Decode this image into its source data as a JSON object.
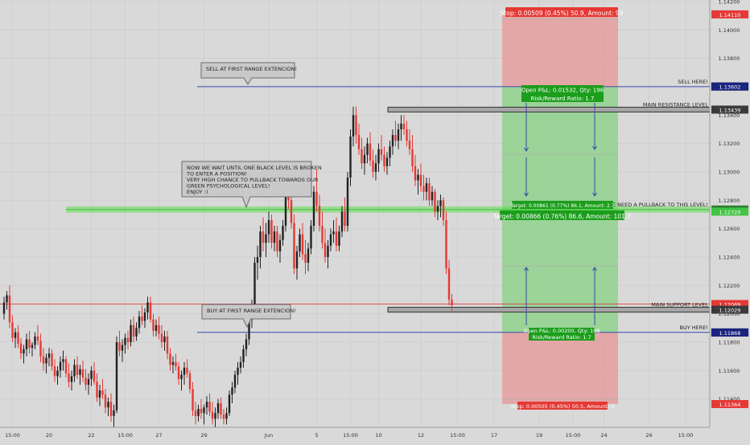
{
  "chart_data": {
    "type": "candlestick",
    "instrument_note": "",
    "ylim": [
      1.112,
      1.142
    ],
    "y_ticks": [
      1.114,
      1.116,
      1.118,
      1.12,
      1.122,
      1.124,
      1.126,
      1.128,
      1.13,
      1.132,
      1.134,
      1.138,
      1.14,
      1.142
    ],
    "y_tick_labels": [
      "1.11400",
      "1.11600",
      "1.11800",
      "1.12000",
      "1.12200",
      "1.12400",
      "1.12600",
      "1.12800",
      "1.13000",
      "1.13200",
      "1.13400",
      "1.13800",
      "1.14000",
      "1.14200"
    ],
    "x_ticks": [
      {
        "idx": 3,
        "label": "15:00"
      },
      {
        "idx": 16,
        "label": "20"
      },
      {
        "idx": 31,
        "label": "22"
      },
      {
        "idx": 43,
        "label": "15:00"
      },
      {
        "idx": 55,
        "label": "27"
      },
      {
        "idx": 71,
        "label": "29"
      },
      {
        "idx": 94,
        "label": "Jun"
      },
      {
        "idx": 111,
        "label": "5"
      },
      {
        "idx": 123,
        "label": "15:00"
      },
      {
        "idx": 133,
        "label": "10"
      },
      {
        "idx": 148,
        "label": "12"
      },
      {
        "idx": 161,
        "label": "15:00"
      },
      {
        "idx": 174,
        "label": "17"
      },
      {
        "idx": 190,
        "label": "19"
      },
      {
        "idx": 202,
        "label": "15:00"
      },
      {
        "idx": 213,
        "label": "24"
      },
      {
        "idx": 229,
        "label": "26"
      },
      {
        "idx": 242,
        "label": "15:00"
      }
    ],
    "price_badges": [
      {
        "label": "1.14110",
        "value": 1.1411,
        "color": "#e53935"
      },
      {
        "label": "1.13601",
        "value": 1.13601,
        "color": "#ffffff",
        "text_color": "#222222"
      },
      {
        "label": "1.13602",
        "value": 1.13602,
        "color": "#1a237e"
      },
      {
        "label": "1.13439",
        "value": 1.13439,
        "color": "#3a3a3a"
      },
      {
        "label": "1.12735",
        "value": 1.12735,
        "color": "#2e7d32"
      },
      {
        "label": "1.12730",
        "value": 1.1273,
        "color": "#2e7d32"
      },
      {
        "label": "1.12720",
        "value": 1.1272,
        "color": "#43c443"
      },
      {
        "label": "1.12069",
        "value": 1.12069,
        "color": "#e53935"
      },
      {
        "label": "1.12029",
        "value": 1.12029,
        "color": "#3a3a3a"
      },
      {
        "label": "1.11869",
        "value": 1.11869,
        "color": "#ffffff",
        "text_color": "#222222"
      },
      {
        "label": "1.11868",
        "value": 1.11868,
        "color": "#1a237e"
      },
      {
        "label": "1.11364",
        "value": 1.11364,
        "color": "#e53935"
      }
    ],
    "levels": [
      {
        "name": "SELL HERE!",
        "value": 1.13601,
        "color": "#3949ab",
        "style": "thin"
      },
      {
        "name": "MAIN RESISTANCE LEVEL",
        "value": 1.13439,
        "color": "#555555",
        "style": "thick"
      },
      {
        "name": "WE NEED A PULLBACK TO THIS LEVEL!",
        "value": 1.12735,
        "color": "#66dd55",
        "style": "band"
      },
      {
        "name": "MAIN SUPPORT LEVEL",
        "value": 1.12029,
        "color": "#555555",
        "style": "thick"
      },
      {
        "name": "BUY HERE!",
        "value": 1.11869,
        "color": "#3949ab",
        "style": "thin"
      }
    ],
    "red_line": 1.12069,
    "positions": {
      "stop_top": 1.1411,
      "entry_sell": 1.13601,
      "target_mid": 1.12735,
      "entry_buy": 1.11869,
      "stop_bottom": 1.11364,
      "stop_top_label": "Stop: 0.00509 (0.45%) 50.9, Amount: 99",
      "open_sell_label_1": "Open P&L: 0.01532, Qty: 196",
      "open_sell_label_2": "Risk/Reward Ratio: 1.7",
      "target_small_label": "Target: 0.00861 (0.77%) 86.1, Amount: 2.7",
      "target_label": "Target: 0.00866 (0.76%) 86.6, Amount: 101.7",
      "open_buy_label_1": "Open P&L: 0.00200, Qty: 198",
      "open_buy_label_2": "Risk/Reward Ratio: 1.7",
      "stop_bottom_label": "Stop: 0.00505 (0.45%) 50.5, Amount: 0"
    },
    "callouts": [
      {
        "lines": [
          "SELL AT FIRST RANGE EXTENCION!"
        ]
      },
      {
        "lines": [
          "NOW WE WAIT UNTIL ONE BLACK LEVEL IS BROKEN",
          "TO ENTER A POSITION!",
          "VERY HIGH CHANCE TO PULLBACK TOWARDS OUR",
          "GREEN PSYCHOLOGICAL LEVEL!",
          "ENJOY :)"
        ]
      },
      {
        "lines": [
          "BUY AT FIRST RANGE EXTENCION!"
        ]
      }
    ],
    "candles": [
      [
        1.12,
        1.1212,
        1.1196,
        1.1208
      ],
      [
        1.1208,
        1.1216,
        1.1203,
        1.1213
      ],
      [
        1.1213,
        1.122,
        1.119,
        1.1194
      ],
      [
        1.1194,
        1.1199,
        1.118,
        1.1183
      ],
      [
        1.1183,
        1.119,
        1.1176,
        1.1187
      ],
      [
        1.1187,
        1.1192,
        1.1176,
        1.1179
      ],
      [
        1.1179,
        1.1183,
        1.1168,
        1.1172
      ],
      [
        1.1172,
        1.1178,
        1.1165,
        1.1175
      ],
      [
        1.1175,
        1.1186,
        1.117,
        1.1182
      ],
      [
        1.1182,
        1.1188,
        1.1172,
        1.1176
      ],
      [
        1.1176,
        1.118,
        1.117,
        1.1178
      ],
      [
        1.1178,
        1.1187,
        1.1175,
        1.1184
      ],
      [
        1.1184,
        1.1192,
        1.1178,
        1.1181
      ],
      [
        1.1181,
        1.1186,
        1.1166,
        1.117
      ],
      [
        1.117,
        1.1176,
        1.116,
        1.1165
      ],
      [
        1.1165,
        1.1172,
        1.1158,
        1.1169
      ],
      [
        1.1169,
        1.1176,
        1.1163,
        1.1172
      ],
      [
        1.1172,
        1.1175,
        1.116,
        1.1163
      ],
      [
        1.1163,
        1.1168,
        1.1152,
        1.1156
      ],
      [
        1.1156,
        1.1163,
        1.115,
        1.116
      ],
      [
        1.116,
        1.117,
        1.1155,
        1.1166
      ],
      [
        1.1166,
        1.1174,
        1.116,
        1.1168
      ],
      [
        1.1168,
        1.117,
        1.1155,
        1.1158
      ],
      [
        1.1158,
        1.1165,
        1.1148,
        1.1152
      ],
      [
        1.1152,
        1.116,
        1.1146,
        1.1156
      ],
      [
        1.1156,
        1.1168,
        1.1152,
        1.1164
      ],
      [
        1.1164,
        1.117,
        1.1154,
        1.1157
      ],
      [
        1.1157,
        1.1164,
        1.115,
        1.1161
      ],
      [
        1.1161,
        1.1167,
        1.1152,
        1.1155
      ],
      [
        1.1155,
        1.1161,
        1.1146,
        1.115
      ],
      [
        1.115,
        1.1158,
        1.1143,
        1.1154
      ],
      [
        1.1154,
        1.1163,
        1.1149,
        1.116
      ],
      [
        1.116,
        1.1166,
        1.115,
        1.1152
      ],
      [
        1.1152,
        1.1158,
        1.1138,
        1.1141
      ],
      [
        1.1141,
        1.115,
        1.1135,
        1.1146
      ],
      [
        1.1146,
        1.1154,
        1.114,
        1.1143
      ],
      [
        1.1143,
        1.1147,
        1.113,
        1.1134
      ],
      [
        1.1134,
        1.1141,
        1.1128,
        1.1138
      ],
      [
        1.1138,
        1.1144,
        1.1124,
        1.1128
      ],
      [
        1.1128,
        1.1136,
        1.112,
        1.1132
      ],
      [
        1.1132,
        1.1184,
        1.113,
        1.118
      ],
      [
        1.118,
        1.1188,
        1.117,
        1.1174
      ],
      [
        1.1174,
        1.1182,
        1.1166,
        1.1178
      ],
      [
        1.1178,
        1.1186,
        1.1172,
        1.1183
      ],
      [
        1.1183,
        1.1188,
        1.1175,
        1.118
      ],
      [
        1.118,
        1.1196,
        1.1177,
        1.1192
      ],
      [
        1.1192,
        1.1198,
        1.118,
        1.1184
      ],
      [
        1.1184,
        1.1194,
        1.1181,
        1.119
      ],
      [
        1.119,
        1.1202,
        1.1186,
        1.1198
      ],
      [
        1.1198,
        1.1206,
        1.1192,
        1.1195
      ],
      [
        1.1195,
        1.1204,
        1.119,
        1.1201
      ],
      [
        1.1201,
        1.1212,
        1.1196,
        1.1208
      ],
      [
        1.1208,
        1.1212,
        1.1194,
        1.1196
      ],
      [
        1.1196,
        1.12,
        1.1184,
        1.1188
      ],
      [
        1.1188,
        1.1196,
        1.1184,
        1.1192
      ],
      [
        1.1192,
        1.1198,
        1.1182,
        1.1186
      ],
      [
        1.1186,
        1.1192,
        1.1176,
        1.118
      ],
      [
        1.118,
        1.1188,
        1.1174,
        1.1184
      ],
      [
        1.1184,
        1.1188,
        1.1168,
        1.1172
      ],
      [
        1.1172,
        1.1176,
        1.116,
        1.1164
      ],
      [
        1.1164,
        1.117,
        1.1158,
        1.1166
      ],
      [
        1.1166,
        1.1172,
        1.116,
        1.1163
      ],
      [
        1.1163,
        1.1166,
        1.115,
        1.1154
      ],
      [
        1.1154,
        1.116,
        1.1146,
        1.1157
      ],
      [
        1.1157,
        1.1166,
        1.115,
        1.1162
      ],
      [
        1.1162,
        1.1168,
        1.1155,
        1.1158
      ],
      [
        1.1158,
        1.116,
        1.1144,
        1.1147
      ],
      [
        1.1147,
        1.1152,
        1.1128,
        1.1132
      ],
      [
        1.1132,
        1.1138,
        1.1122,
        1.1128
      ],
      [
        1.1128,
        1.1136,
        1.1124,
        1.1133
      ],
      [
        1.1133,
        1.114,
        1.1126,
        1.113
      ],
      [
        1.113,
        1.1136,
        1.1122,
        1.1134
      ],
      [
        1.1134,
        1.1142,
        1.1129,
        1.1138
      ],
      [
        1.1138,
        1.1144,
        1.1128,
        1.1131
      ],
      [
        1.1131,
        1.1138,
        1.1122,
        1.1126
      ],
      [
        1.1126,
        1.1134,
        1.112,
        1.113
      ],
      [
        1.113,
        1.114,
        1.1126,
        1.1137
      ],
      [
        1.1137,
        1.1141,
        1.1126,
        1.1129
      ],
      [
        1.1129,
        1.1133,
        1.1122,
        1.1126
      ],
      [
        1.1126,
        1.1134,
        1.1122,
        1.113
      ],
      [
        1.113,
        1.1146,
        1.1128,
        1.1143
      ],
      [
        1.1143,
        1.1152,
        1.1137,
        1.1148
      ],
      [
        1.1148,
        1.116,
        1.1144,
        1.1157
      ],
      [
        1.1157,
        1.1166,
        1.115,
        1.1162
      ],
      [
        1.1162,
        1.117,
        1.1158,
        1.1166
      ],
      [
        1.1166,
        1.1178,
        1.1162,
        1.1175
      ],
      [
        1.1175,
        1.1186,
        1.117,
        1.1182
      ],
      [
        1.1182,
        1.12,
        1.1178,
        1.1198
      ],
      [
        1.1198,
        1.121,
        1.119,
        1.1206
      ],
      [
        1.1206,
        1.124,
        1.12,
        1.1236
      ],
      [
        1.1236,
        1.1248,
        1.1224,
        1.124
      ],
      [
        1.124,
        1.1262,
        1.1232,
        1.1258
      ],
      [
        1.1258,
        1.1268,
        1.1244,
        1.125
      ],
      [
        1.125,
        1.1264,
        1.124,
        1.1256
      ],
      [
        1.1256,
        1.1272,
        1.125,
        1.1266
      ],
      [
        1.1266,
        1.127,
        1.1246,
        1.125
      ],
      [
        1.125,
        1.1262,
        1.1244,
        1.1258
      ],
      [
        1.1258,
        1.1262,
        1.124,
        1.1244
      ],
      [
        1.1244,
        1.1256,
        1.1236,
        1.1252
      ],
      [
        1.1252,
        1.1266,
        1.1248,
        1.1262
      ],
      [
        1.1262,
        1.129,
        1.1258,
        1.1286
      ],
      [
        1.1286,
        1.13,
        1.1274,
        1.128
      ],
      [
        1.128,
        1.129,
        1.126,
        1.1264
      ],
      [
        1.1264,
        1.127,
        1.1228,
        1.1232
      ],
      [
        1.1232,
        1.1248,
        1.1224,
        1.1244
      ],
      [
        1.1244,
        1.126,
        1.124,
        1.1256
      ],
      [
        1.1256,
        1.1264,
        1.1238,
        1.1242
      ],
      [
        1.1242,
        1.1252,
        1.1228,
        1.1236
      ],
      [
        1.1236,
        1.125,
        1.123,
        1.1246
      ],
      [
        1.1246,
        1.1266,
        1.1242,
        1.1262
      ],
      [
        1.1262,
        1.129,
        1.1258,
        1.1286
      ],
      [
        1.1286,
        1.1302,
        1.1272,
        1.1276
      ],
      [
        1.1276,
        1.1284,
        1.1258,
        1.1262
      ],
      [
        1.1262,
        1.1272,
        1.1246,
        1.125
      ],
      [
        1.125,
        1.126,
        1.1236,
        1.124
      ],
      [
        1.124,
        1.1252,
        1.1232,
        1.1248
      ],
      [
        1.1248,
        1.126,
        1.1244,
        1.1256
      ],
      [
        1.1256,
        1.1266,
        1.125,
        1.1258
      ],
      [
        1.1258,
        1.1268,
        1.1244,
        1.1248
      ],
      [
        1.1248,
        1.1262,
        1.1244,
        1.1258
      ],
      [
        1.1258,
        1.1276,
        1.1254,
        1.1272
      ],
      [
        1.1272,
        1.1282,
        1.1258,
        1.1262
      ],
      [
        1.1262,
        1.13,
        1.1258,
        1.1296
      ],
      [
        1.1296,
        1.133,
        1.129,
        1.1325
      ],
      [
        1.1325,
        1.1346,
        1.1318,
        1.134
      ],
      [
        1.134,
        1.1346,
        1.132,
        1.1326
      ],
      [
        1.1326,
        1.1334,
        1.1312,
        1.1316
      ],
      [
        1.1316,
        1.1324,
        1.1302,
        1.1306
      ],
      [
        1.1306,
        1.1318,
        1.1298,
        1.1312
      ],
      [
        1.1312,
        1.1324,
        1.1306,
        1.132
      ],
      [
        1.132,
        1.1328,
        1.1304,
        1.1308
      ],
      [
        1.1308,
        1.1316,
        1.1296,
        1.13
      ],
      [
        1.13,
        1.1312,
        1.1294,
        1.1306
      ],
      [
        1.1306,
        1.132,
        1.13,
        1.1316
      ],
      [
        1.1316,
        1.1326,
        1.1308,
        1.1312
      ],
      [
        1.1312,
        1.1318,
        1.13,
        1.1304
      ],
      [
        1.1304,
        1.1314,
        1.1298,
        1.131
      ],
      [
        1.131,
        1.1322,
        1.1304,
        1.1318
      ],
      [
        1.1318,
        1.133,
        1.1312,
        1.1326
      ],
      [
        1.1326,
        1.1336,
        1.1318,
        1.1322
      ],
      [
        1.1322,
        1.1334,
        1.1316,
        1.133
      ],
      [
        1.133,
        1.134,
        1.1322,
        1.1334
      ],
      [
        1.1334,
        1.134,
        1.1326,
        1.133
      ],
      [
        1.133,
        1.1336,
        1.1318,
        1.1322
      ],
      [
        1.1322,
        1.133,
        1.1312,
        1.1316
      ],
      [
        1.1316,
        1.1326,
        1.13,
        1.1304
      ],
      [
        1.1304,
        1.1312,
        1.129,
        1.1294
      ],
      [
        1.1294,
        1.1302,
        1.1284,
        1.1298
      ],
      [
        1.1298,
        1.1306,
        1.1286,
        1.129
      ],
      [
        1.129,
        1.1298,
        1.128,
        1.1286
      ],
      [
        1.1286,
        1.1296,
        1.128,
        1.1292
      ],
      [
        1.1292,
        1.1296,
        1.1276,
        1.128
      ],
      [
        1.128,
        1.129,
        1.1276,
        1.1286
      ],
      [
        1.1286,
        1.1288,
        1.1268,
        1.1272
      ],
      [
        1.1272,
        1.128,
        1.1266,
        1.1276
      ],
      [
        1.1276,
        1.1284,
        1.1268,
        1.128
      ],
      [
        1.128,
        1.1282,
        1.1262,
        1.1266
      ],
      [
        1.1266,
        1.1272,
        1.1228,
        1.1232
      ],
      [
        1.1232,
        1.1238,
        1.1206,
        1.121
      ],
      [
        1.121,
        1.1214,
        1.1202,
        1.1206
      ]
    ]
  }
}
